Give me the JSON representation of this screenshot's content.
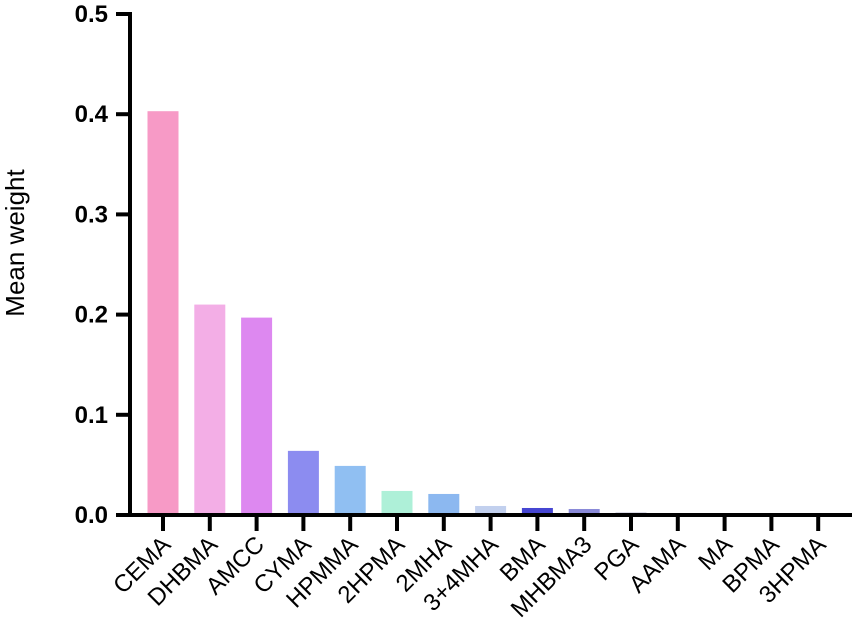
{
  "chart_data": {
    "type": "bar",
    "title": "",
    "xlabel": "",
    "ylabel": "Mean weight",
    "ylim": [
      0,
      0.5
    ],
    "yticks": [
      "0.0",
      "0.1",
      "0.2",
      "0.3",
      "0.4",
      "0.5"
    ],
    "grid": false,
    "categories": [
      "CEMA",
      "DHBMA",
      "AMCC",
      "CYMA",
      "HPMMA",
      "2HPMA",
      "2MHA",
      "3+4MHA",
      "BMA",
      "MHBMA3",
      "PGA",
      "AAMA",
      "MA",
      "BPMA",
      "3HPMA"
    ],
    "values": [
      0.403,
      0.21,
      0.197,
      0.064,
      0.049,
      0.024,
      0.021,
      0.009,
      0.007,
      0.006,
      0.003,
      0.0,
      0.0,
      0.0,
      0.0
    ],
    "colors": [
      "#f79ac6",
      "#f3aee6",
      "#dd88f0",
      "#8c8cf0",
      "#90bff2",
      "#aef0d8",
      "#8cb8f0",
      "#c2d0ee",
      "#4646d2",
      "#8a8ad8",
      "#dcdce8",
      "#dddddd",
      "#dddddd",
      "#dddddd",
      "#dddddd"
    ]
  }
}
